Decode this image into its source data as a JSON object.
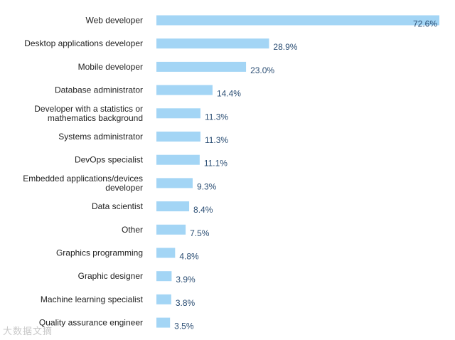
{
  "chart_data": {
    "type": "bar",
    "orientation": "horizontal",
    "title": "",
    "xlabel": "",
    "ylabel": "",
    "xlim": [
      0,
      72.6
    ],
    "grid": false,
    "legend": "none",
    "value_suffix": "%",
    "bar_color": "#a3d5f5",
    "value_label_color": "#2a4d73",
    "categories": [
      "Web developer",
      "Desktop applications developer",
      "Mobile developer",
      "Database administrator",
      "Developer with a statistics or mathematics background",
      "Systems administrator",
      "DevOps specialist",
      "Embedded applications/devices developer",
      "Data scientist",
      "Other",
      "Graphics programming",
      "Graphic designer",
      "Machine learning specialist",
      "Quality assurance engineer"
    ],
    "label_lines": [
      [
        "Web developer"
      ],
      [
        "Desktop applications developer"
      ],
      [
        "Mobile developer"
      ],
      [
        "Database administrator"
      ],
      [
        "Developer with a statistics or",
        "mathematics background"
      ],
      [
        "Systems administrator"
      ],
      [
        "DevOps specialist"
      ],
      [
        "Embedded applications/devices",
        "developer"
      ],
      [
        "Data scientist"
      ],
      [
        "Other"
      ],
      [
        "Graphics programming"
      ],
      [
        "Graphic designer"
      ],
      [
        "Machine learning specialist"
      ],
      [
        "Quality assurance engineer"
      ]
    ],
    "values": [
      72.6,
      28.9,
      23.0,
      14.4,
      11.3,
      11.3,
      11.1,
      9.3,
      8.4,
      7.5,
      4.8,
      3.9,
      3.8,
      3.5
    ],
    "value_labels": [
      "72.6%",
      "28.9%",
      "23.0%",
      "14.4%",
      "11.3%",
      "11.3%",
      "11.1%",
      "9.3%",
      "8.4%",
      "7.5%",
      "4.8%",
      "3.9%",
      "3.8%",
      "3.5%"
    ]
  },
  "watermark": {
    "text": "大数据文摘"
  }
}
